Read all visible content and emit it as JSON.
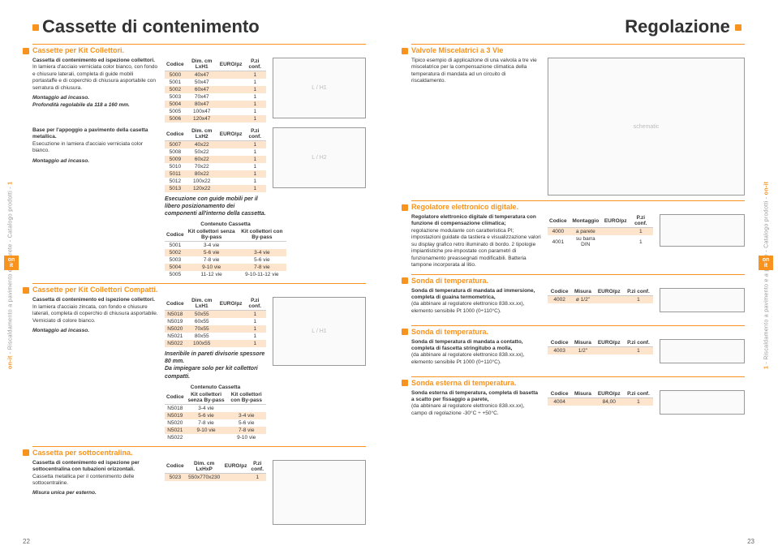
{
  "side_text": "Riscaldamento a pavimento e a parete - Catalogo prodotti",
  "side_brand": "on-it",
  "section_num": "1",
  "left": {
    "title": "Cassette di contenimento",
    "s1": {
      "hdr": "Cassette per Kit Collettori.",
      "p1_b": "Cassetta di contenimento ed ispezione collettori.",
      "p1": "In lamiera d'acciaio verniciata color bianco, con fondo e chiusure laterali, completa di guide mobili portastaffe e di coperchio di chiusura asportabile con serratura di chiusura.",
      "p2_i": "Montaggio ad incasso.\nProfondità regolabile da 118 a 160 mm.",
      "t1_cols": [
        "Codice",
        "Dim. cm LxH1",
        "EURO/pz",
        "P.zi conf."
      ],
      "t1": [
        [
          "5000",
          "40x47",
          "",
          "1"
        ],
        [
          "5001",
          "50x47",
          "",
          "1"
        ],
        [
          "5002",
          "60x47",
          "",
          "1"
        ],
        [
          "5003",
          "70x47",
          "",
          "1"
        ],
        [
          "5004",
          "80x47",
          "",
          "1"
        ],
        [
          "5005",
          "100x47",
          "",
          "1"
        ],
        [
          "5006",
          "120x47",
          "",
          "1"
        ]
      ],
      "p3_b": "Base per l'appoggio a pavimento della casetta metallica.",
      "p3": "Esecuzione in lamiera d'acciaio verniciata color bianco.",
      "p4_i": "Montaggio ad incasso.",
      "t2_cols": [
        "Codice",
        "Dim. cm LxH2",
        "EURO/pz",
        "P.zi conf."
      ],
      "t2": [
        [
          "5007",
          "40x22",
          "",
          "1"
        ],
        [
          "5008",
          "50x22",
          "",
          "1"
        ],
        [
          "5009",
          "60x22",
          "",
          "1"
        ],
        [
          "5010",
          "70x22",
          "",
          "1"
        ],
        [
          "5011",
          "80x22",
          "",
          "1"
        ],
        [
          "5012",
          "100x22",
          "",
          "1"
        ],
        [
          "5013",
          "120x22",
          "",
          "1"
        ]
      ],
      "t2_note": "Esecuzione con guide mobili per il libero posizionamento dei componenti all'interno della cassetta.",
      "t3_hdr": "Contenuto Cassetta",
      "t3_cols": [
        "Codice",
        "Kit collettori senza By-pass",
        "Kit collettori con By-pass"
      ],
      "t3": [
        [
          "5001",
          "3-4 vie",
          ""
        ],
        [
          "5002",
          "5-6 vie",
          "3-4 vie"
        ],
        [
          "5003",
          "7-8 vie",
          "5-6 vie"
        ],
        [
          "5004",
          "9-10 vie",
          "7-8 vie"
        ],
        [
          "5005",
          "11-12 vie",
          "9-10-11-12 vie"
        ]
      ]
    },
    "s2": {
      "hdr": "Cassette per Kit Collettori Compatti.",
      "p1_b": "Cassetta di contenimento ed ispezione collettori.",
      "p1": "In lamiera d'acciaio zincata, con fondo e chiusure laterali, completa di coperchio di chiusura asportabile. Verniciato di colore bianco.",
      "p2_i": "Montaggio ad incasso.",
      "t1_cols": [
        "Codice",
        "Dim. cm LxH1",
        "EURO/pz",
        "P.zi conf."
      ],
      "t1": [
        [
          "N5018",
          "50x55",
          "",
          "1"
        ],
        [
          "N5019",
          "60x55",
          "",
          "1"
        ],
        [
          "N5020",
          "70x55",
          "",
          "1"
        ],
        [
          "N5021",
          "80x55",
          "",
          "1"
        ],
        [
          "N5022",
          "100x55",
          "",
          "1"
        ]
      ],
      "t1_note": "Inseribile in pareti divisorie spessore 80 mm.\nDa impiegare solo per kit collettori compatti.",
      "t2_hdr": "Contenuto Cassetta",
      "t2_cols": [
        "Codice",
        "Kit collettori senza By-pass",
        "Kit collettori con By-pass"
      ],
      "t2": [
        [
          "N5018",
          "3-4 vie",
          ""
        ],
        [
          "N5019",
          "5-6 vie",
          "3-4 vie"
        ],
        [
          "N5020",
          "7-8 vie",
          "5-6 vie"
        ],
        [
          "N5021",
          "9-10 vie",
          "7-8 vie"
        ],
        [
          "N5022",
          "",
          "9-10 vie"
        ]
      ]
    },
    "s3": {
      "hdr": "Cassetta per sottocentralina.",
      "p1_b": "Cassetta di contenimento ed ispezione per sottocentralina con tubazioni orizzontali.",
      "p1": "Cassetta metallica per il contenimento delle sottocentraline.",
      "p2_i": "Misura unica per esterno.",
      "t1_cols": [
        "Codice",
        "Dim. cm LxHxP",
        "EURO/pz",
        "P.zi conf."
      ],
      "t1": [
        [
          "5023",
          "550x770x230",
          "",
          "1"
        ]
      ]
    },
    "page_num": "22"
  },
  "right": {
    "title": "Regolazione",
    "s1": {
      "hdr": "Valvole Miscelatrici a 3 Vie",
      "p1": "Tipico esempio di applicazione di una valvola a tre vie miscelatrice per la compensazione climatica della temperatura di mandata ad un circuito di riscaldamento."
    },
    "s2": {
      "hdr": "Regolatore elettronico digitale.",
      "p1_b": "Regolatore elettronico digitale di temperatura con funzione di compensazione climatica;",
      "p1": "regolazione modulante con caratteristica PI; impostazioni guidate da tastiera e visualizzazione valori su display grafico retro illuminato di bordo. 2 tipologie impiantistiche pre-impostate con parametri di funzionamento preassegnati modificabili. Batteria tampone incorporata al litio.",
      "t_cols": [
        "Codice",
        "Montaggio",
        "EURO/pz",
        "P.zi conf."
      ],
      "t": [
        [
          "4000",
          "a parete",
          "",
          "1"
        ],
        [
          "4001",
          "su barra DIN",
          "",
          "1"
        ]
      ]
    },
    "s3": {
      "hdr": "Sonda di temperatura.",
      "p1_b": "Sonda di temperatura di mandata ad immersione, completa di guaina termometrica,",
      "p1": "(da abbinare al regolatore elettronico 838.xx.xx), elemento sensibile Pt 1000 (0÷110°C).",
      "t_cols": [
        "Codice",
        "Misura",
        "EURO/pz",
        "P.zi conf."
      ],
      "t": [
        [
          "4002",
          "ø 1/2\"",
          "",
          "1"
        ]
      ]
    },
    "s4": {
      "hdr": "Sonda di temperatura.",
      "p1_b": "Sonda di temperatura di mandata a contatto, completa di fascetta stringitubo a molla,",
      "p1": "(da abbinare al regolatore elettronico 838.xx.xx), elemento sensibile Pt 1000 (0÷110°C).",
      "t_cols": [
        "Codice",
        "Misura",
        "EURO/pz",
        "P.zi conf."
      ],
      "t": [
        [
          "4003",
          "1/2\"",
          "",
          "1"
        ]
      ]
    },
    "s5": {
      "hdr": "Sonda esterna di temperatura.",
      "p1_b": "Sonda esterna di temperatura, completa di basetta a scatto per fissaggio a parete,",
      "p1": "(da abbinare al regolatore elettronico 838.xx.xx), campo di regolazione -30°C ÷ +50°C.",
      "t_cols": [
        "Codice",
        "Misura",
        "EURO/pz",
        "P.zi conf."
      ],
      "t": [
        [
          "4004",
          "",
          "84,00",
          "1"
        ]
      ]
    },
    "page_num": "23"
  },
  "colors": {
    "accent": "#f7931e",
    "shade": "#fde4cc"
  }
}
